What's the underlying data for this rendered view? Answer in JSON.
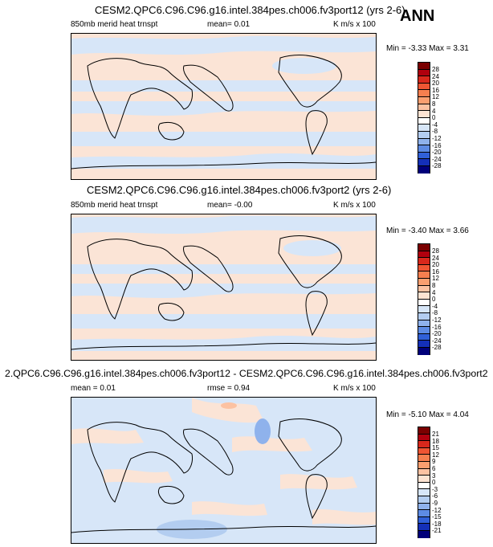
{
  "season": "ANN",
  "panels": [
    {
      "title": "CESM2.QPC6.C96.C96.g16.intel.384pes.ch006.fv3port12 (yrs 2-6)",
      "left_label": "850mb merid heat trnspt",
      "center_label": "mean=  0.01",
      "right_label": "K m/s x 100",
      "minmax": "Min = -3.33 Max =  3.31",
      "levels": [
        "28",
        "24",
        "20",
        "16",
        "12",
        "8",
        "4",
        "0",
        "-4",
        "-8",
        "-12",
        "-16",
        "-20",
        "-24",
        "-28"
      ]
    },
    {
      "title": "CESM2.QPC6.C96.C96.g16.intel.384pes.ch006.fv3port2 (yrs 2-6)",
      "left_label": "850mb merid heat trnspt",
      "center_label": "mean=  -0.00",
      "right_label": "K m/s x 100",
      "minmax": "Min = -3.40 Max =  3.66",
      "levels": [
        "28",
        "24",
        "20",
        "16",
        "12",
        "8",
        "4",
        "0",
        "-4",
        "-8",
        "-12",
        "-16",
        "-20",
        "-24",
        "-28"
      ]
    },
    {
      "title": "2.QPC6.C96.C96.g16.intel.384pes.ch006.fv3port12 - CESM2.QPC6.C96.C96.g16.intel.384pes.ch006.fv3port2",
      "left_label": "mean =  0.01",
      "center_label": "rmse =  0.94",
      "right_label": "K m/s x 100",
      "minmax": "Min = -5.10 Max =  4.04",
      "levels": [
        "21",
        "18",
        "15",
        "12",
        "9",
        "6",
        "3",
        "0",
        "-3",
        "-6",
        "-9",
        "-12",
        "-15",
        "-18",
        "-21"
      ]
    }
  ],
  "colorbar_colors": [
    "#7a0000",
    "#b0000e",
    "#d8281c",
    "#ef5533",
    "#f67f4f",
    "#fa9f70",
    "#fcc2a2",
    "#fde3d2",
    "#ffffff",
    "#d7e6f8",
    "#b3cdf0",
    "#8fb2ec",
    "#5d8be4",
    "#3060d8",
    "#1430b8",
    "#00007a"
  ]
}
